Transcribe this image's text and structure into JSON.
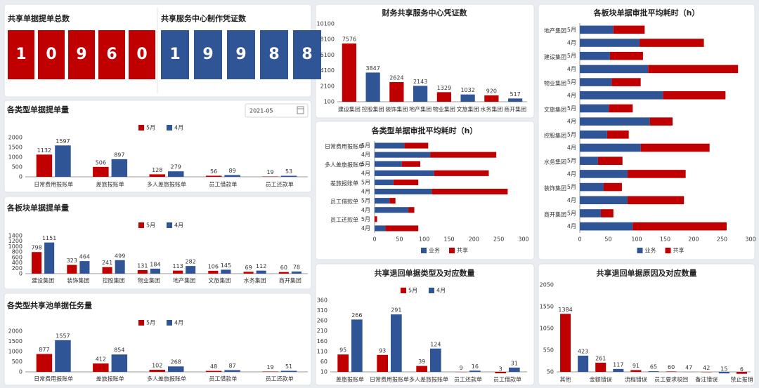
{
  "counters": [
    {
      "title": "共享单据提单总数",
      "digits": [
        1,
        0,
        9,
        6,
        0
      ],
      "color": "#c00000"
    },
    {
      "title": "共享服务中心制作凭证数",
      "digits": [
        1,
        9,
        9,
        8,
        8
      ],
      "color": "#2f5597"
    }
  ],
  "controls": {
    "month": "2021-05"
  },
  "chart_data": [
    {
      "type": "bar",
      "title": "各类型单据提单量",
      "categories": [
        "日常费用报账单",
        "差旅报账单",
        "多人差旅报账单",
        "员工借款单",
        "员工还款单"
      ],
      "series": [
        {
          "name": "5月",
          "color": "#c00000",
          "values": [
            1132,
            506,
            128,
            56,
            19
          ]
        },
        {
          "name": "4月",
          "color": "#2f5597",
          "values": [
            1597,
            897,
            279,
            89,
            53
          ]
        }
      ],
      "ylim": [
        0,
        2000
      ],
      "yticks": [
        0,
        500,
        1000,
        1500,
        2000
      ],
      "grid": false
    },
    {
      "type": "bar",
      "title": "各板块单据提单量",
      "categories": [
        "建设集团",
        "装饰集团",
        "控股集团",
        "物业集团",
        "地产集团",
        "文旅集团",
        "水务集团",
        "商开集团"
      ],
      "series": [
        {
          "name": "5月",
          "color": "#c00000",
          "values": [
            798,
            323,
            241,
            131,
            113,
            106,
            69,
            60
          ]
        },
        {
          "name": "4月",
          "color": "#2f5597",
          "values": [
            1151,
            464,
            499,
            184,
            282,
            145,
            112,
            78
          ]
        }
      ],
      "ylim": [
        0,
        1400
      ],
      "yticks": [
        0,
        200,
        400,
        600,
        800,
        1000,
        1200,
        1400
      ],
      "grid": false
    },
    {
      "type": "bar",
      "title": "各类型共享池单据任务量",
      "categories": [
        "日常费用报账单",
        "差旅报账单",
        "多人差旅报账单",
        "员工借款单",
        "员工还款单"
      ],
      "series": [
        {
          "name": "5月",
          "color": "#c00000",
          "values": [
            877,
            412,
            102,
            48,
            19
          ]
        },
        {
          "name": "4月",
          "color": "#2f5597",
          "values": [
            1557,
            854,
            268,
            87,
            51
          ]
        }
      ],
      "ylim": [
        0,
        2000
      ],
      "yticks": [
        0,
        500,
        1000,
        1500,
        2000
      ],
      "grid": false
    },
    {
      "type": "bar",
      "title": "财务共享服务中心凭证数",
      "categories": [
        "建设集团",
        "控股集团",
        "装饰集团",
        "地产集团",
        "物业集团",
        "文旅集团",
        "水务集团",
        "商开集团"
      ],
      "values": [
        7576,
        3847,
        2624,
        2143,
        1329,
        1032,
        920,
        517
      ],
      "colors": [
        "#c00000",
        "#2f5597",
        "#c00000",
        "#2f5597",
        "#c00000",
        "#2f5597",
        "#c00000",
        "#2f5597"
      ],
      "ylim": [
        100,
        10100
      ],
      "yticks": [
        100,
        2100,
        4100,
        6100,
        8100,
        10100
      ],
      "grid": false
    },
    {
      "type": "hbar_stacked",
      "title": "各类型单据审批平均耗时（h）",
      "groups": [
        "日常费用报账单",
        "多人差旅报账单",
        "差旅报账单",
        "员工借款单",
        "员工还款单"
      ],
      "categories": [
        "5月",
        "4月",
        "5月",
        "4月",
        "5月",
        "4月",
        "5月",
        "4月",
        "5月",
        "4月"
      ],
      "series": [
        {
          "name": "业务",
          "color": "#2f5597",
          "values": [
            60,
            112,
            55,
            120,
            38,
            115,
            30,
            68,
            0,
            22
          ]
        },
        {
          "name": "共享",
          "color": "#c00000",
          "values": [
            48,
            133,
            37,
            110,
            50,
            153,
            12,
            12,
            5,
            66
          ]
        }
      ],
      "xlim": [
        0,
        300
      ],
      "xticks": [
        0,
        50,
        100,
        150,
        200,
        250,
        300
      ],
      "grid": false
    },
    {
      "type": "hbar_stacked",
      "title": "各板块单据审批平均耗时（h）",
      "groups": [
        "地产集团",
        "建设集团",
        "物业集团",
        "文旅集团",
        "控股集团",
        "水务集团",
        "装饰集团",
        "商开集团"
      ],
      "categories": [
        "5月",
        "4月",
        "5月",
        "4月",
        "5月",
        "4月",
        "5月",
        "4月",
        "5月",
        "4月",
        "5月",
        "4月",
        "5月",
        "4月",
        "5月",
        "4月"
      ],
      "series": [
        {
          "name": "业务",
          "color": "#2f5597",
          "values": [
            59,
            105,
            53,
            120,
            56,
            146,
            51,
            123,
            48,
            107,
            32,
            84,
            42,
            84,
            37,
            93
          ]
        },
        {
          "name": "共享",
          "color": "#c00000",
          "values": [
            55,
            113,
            58,
            158,
            51,
            110,
            42,
            40,
            38,
            121,
            43,
            102,
            32,
            99,
            22,
            165
          ]
        }
      ],
      "xlim": [
        0,
        300
      ],
      "xticks": [
        0,
        50,
        100,
        150,
        200,
        250,
        300
      ],
      "grid": false
    },
    {
      "type": "bar",
      "title": "共享退回单据类型及对应数量",
      "categories": [
        "差旅报账单",
        "日常费用报账单",
        "多人差旅报账单",
        "员工还款单",
        "员工借款单"
      ],
      "series": [
        {
          "name": "5月",
          "color": "#c00000",
          "values": [
            95,
            93,
            39,
            9,
            3
          ]
        },
        {
          "name": "4月",
          "color": "#2f5597",
          "values": [
            266,
            291,
            124,
            16,
            31
          ]
        }
      ],
      "ylim": [
        10,
        360
      ],
      "yticks": [
        10,
        60,
        110,
        160,
        210,
        260,
        310,
        360
      ],
      "grid": false
    },
    {
      "type": "bar",
      "title": "共享退回单据原因及对应数量",
      "categories": [
        "其他",
        null,
        "金额错误",
        null,
        "流程错误",
        null,
        "员工要求驳回",
        null,
        "备注错误",
        null,
        "禁止报销"
      ],
      "values": [
        1384,
        423,
        261,
        117,
        91,
        65,
        60,
        47,
        42,
        15,
        6
      ],
      "colors": [
        "#c00000",
        "#2f5597",
        "#c00000",
        "#2f5597",
        "#c00000",
        "#2f5597",
        "#c00000",
        "#2f5597",
        "#c00000",
        "#2f5597",
        "#c00000"
      ],
      "ylim": [
        50,
        2050
      ],
      "yticks": [
        50,
        550,
        1050,
        1550,
        2050
      ],
      "grid": false
    }
  ]
}
